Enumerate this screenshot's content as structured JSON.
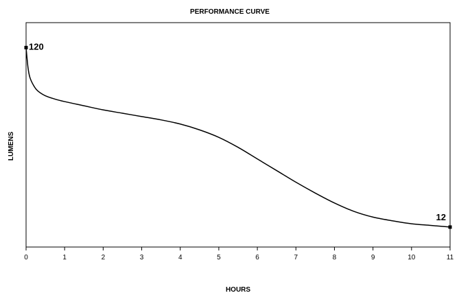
{
  "chart_data": {
    "type": "line",
    "title": "PERFORMANCE CURVE",
    "xlabel": "HOURS",
    "ylabel": "LUMENS",
    "xlim": [
      0,
      11
    ],
    "ylim": [
      0,
      135
    ],
    "grid": false,
    "x_ticks": [
      "0",
      "1",
      "2",
      "3",
      "4",
      "5",
      "6",
      "7",
      "8",
      "9",
      "10",
      "11"
    ],
    "series": [
      {
        "x": [
          0,
          0.05,
          0.1,
          0.2,
          0.3,
          0.5,
          0.75,
          1,
          1.5,
          2,
          2.5,
          3,
          3.5,
          4,
          4.5,
          5,
          5.5,
          6,
          6.5,
          7,
          7.5,
          8,
          8.5,
          9,
          9.5,
          10,
          10.5,
          11
        ],
        "y": [
          120,
          108,
          102,
          97,
          94,
          91,
          89,
          87.5,
          85,
          82.5,
          80.5,
          78.5,
          76.5,
          74,
          70.5,
          66,
          60,
          53,
          46,
          39,
          32.5,
          26.5,
          21.5,
          18,
          15.8,
          14,
          13,
          12
        ]
      }
    ],
    "point_labels": [
      {
        "x": 0,
        "y": 120,
        "text": "120"
      },
      {
        "x": 11,
        "y": 12,
        "text": "12"
      }
    ],
    "colors": {
      "line": "#000000",
      "axis": "#000000"
    }
  }
}
